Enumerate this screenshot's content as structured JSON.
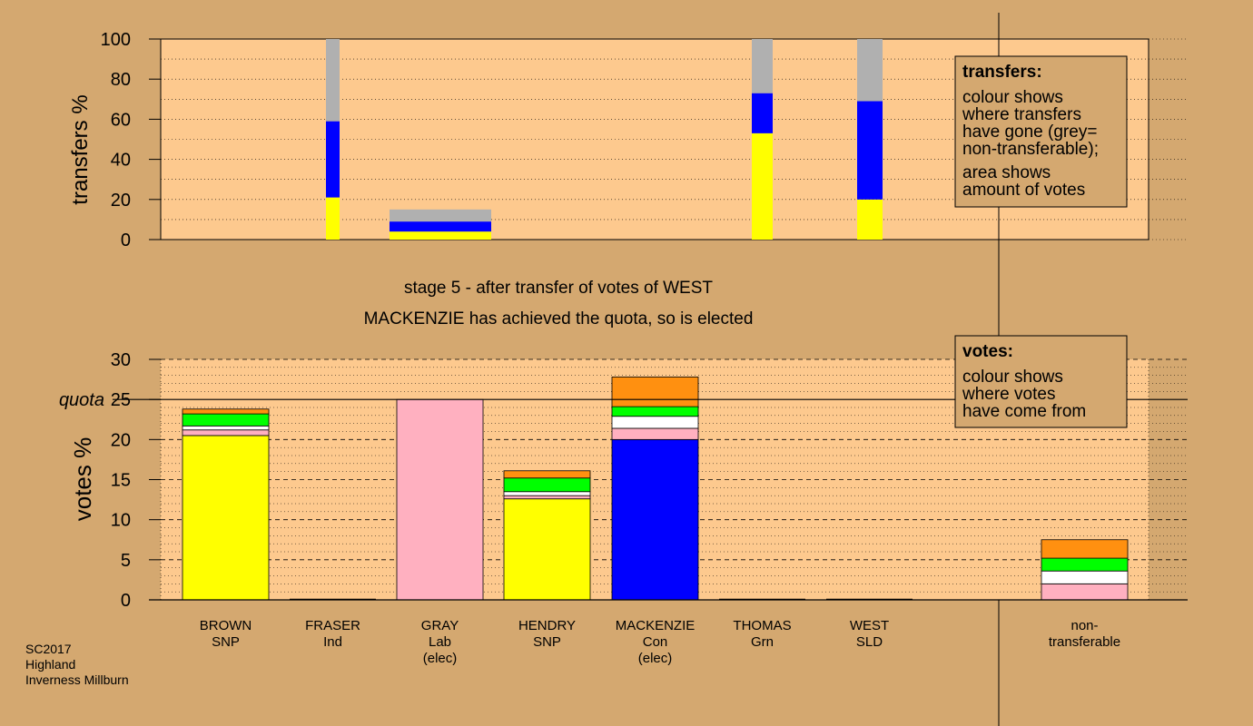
{
  "colors": {
    "background": "#d4a870",
    "plot_background": "#fdc98e",
    "snp": "#ffff00",
    "lab": "#ffb0c0",
    "con": "#0000ff",
    "grn": "#00ff00",
    "ind": "#ffffff",
    "sld": "#ff9010",
    "non_transferable": "#b0b0b0"
  },
  "caption": {
    "line1": "stage 5 - after transfer of votes of WEST",
    "line2": "MACKENZIE has achieved the quota, so is elected"
  },
  "footer": [
    "SC2017",
    "Highland",
    "Inverness Millburn"
  ],
  "transfers_legend": {
    "title": "transfers:",
    "lines": [
      "colour shows",
      "where transfers",
      "have gone (grey=",
      "non-transferable);",
      "area shows",
      "amount of votes"
    ]
  },
  "votes_legend": {
    "title": "votes:",
    "lines": [
      "colour shows",
      "where votes",
      "have come from"
    ]
  },
  "chart_data": [
    {
      "type": "bar",
      "ylabel": "transfers %",
      "ylim": [
        0,
        100
      ],
      "yticks": [
        "0",
        "20",
        "40",
        "60",
        "80",
        "100"
      ],
      "grid": true,
      "legend_placement": "top-right",
      "note": "stacked bars; width proportional to votes transferred",
      "bars": [
        {
          "source": "earlier",
          "segments": [
            {
              "party": "snp",
              "value": 21
            },
            {
              "party": "con",
              "value": 38
            },
            {
              "party": "non_transferable",
              "value": 41
            }
          ]
        },
        {
          "source": "earlier",
          "segments": [
            {
              "party": "snp",
              "value": 4
            },
            {
              "party": "con",
              "value": 5
            },
            {
              "party": "non_transferable",
              "value": 6
            }
          ]
        },
        {
          "source": "earlier",
          "segments": [
            {
              "party": "snp",
              "value": 53
            },
            {
              "party": "con",
              "value": 20
            },
            {
              "party": "non_transferable",
              "value": 27
            }
          ]
        },
        {
          "source": "WEST",
          "segments": [
            {
              "party": "snp",
              "value": 20
            },
            {
              "party": "con",
              "value": 49
            },
            {
              "party": "non_transferable",
              "value": 31
            }
          ]
        }
      ]
    },
    {
      "type": "bar",
      "ylabel": "votes %",
      "ylim": [
        0,
        30
      ],
      "yticks": [
        "0",
        "5",
        "10",
        "15",
        "20",
        "25",
        "30"
      ],
      "quota": 25,
      "quota_label": "quota",
      "grid": true,
      "legend_placement": "top-right",
      "categories": [
        {
          "name": "BROWN",
          "party": "SNP",
          "status": ""
        },
        {
          "name": "FRASER",
          "party": "Ind",
          "status": ""
        },
        {
          "name": "GRAY",
          "party": "Lab",
          "status": "(elec)"
        },
        {
          "name": "HENDRY",
          "party": "SNP",
          "status": ""
        },
        {
          "name": "MACKENZIE",
          "party": "Con",
          "status": "(elec)"
        },
        {
          "name": "THOMAS",
          "party": "Grn",
          "status": ""
        },
        {
          "name": "WEST",
          "party": "SLD",
          "status": ""
        },
        {
          "name": "non-",
          "party": "transferable",
          "status": ""
        }
      ],
      "stacks": [
        [
          {
            "from": "snp",
            "value": 20.5
          },
          {
            "from": "lab",
            "value": 0.7
          },
          {
            "from": "ind",
            "value": 0.5
          },
          {
            "from": "grn",
            "value": 1.5
          },
          {
            "from": "sld",
            "value": 0.6
          }
        ],
        [],
        [
          {
            "from": "lab",
            "value": 25.0
          }
        ],
        [
          {
            "from": "snp",
            "value": 12.6
          },
          {
            "from": "lab",
            "value": 0.4
          },
          {
            "from": "ind",
            "value": 0.5
          },
          {
            "from": "grn",
            "value": 1.7
          },
          {
            "from": "sld",
            "value": 0.9
          }
        ],
        [
          {
            "from": "con",
            "value": 20.0
          },
          {
            "from": "lab",
            "value": 1.4
          },
          {
            "from": "ind",
            "value": 1.5
          },
          {
            "from": "grn",
            "value": 1.2
          },
          {
            "from": "sld",
            "value": 3.7
          }
        ],
        [],
        [],
        [
          {
            "from": "lab",
            "value": 2.0
          },
          {
            "from": "ind",
            "value": 1.6
          },
          {
            "from": "grn",
            "value": 1.6
          },
          {
            "from": "sld",
            "value": 2.3
          }
        ]
      ]
    }
  ]
}
